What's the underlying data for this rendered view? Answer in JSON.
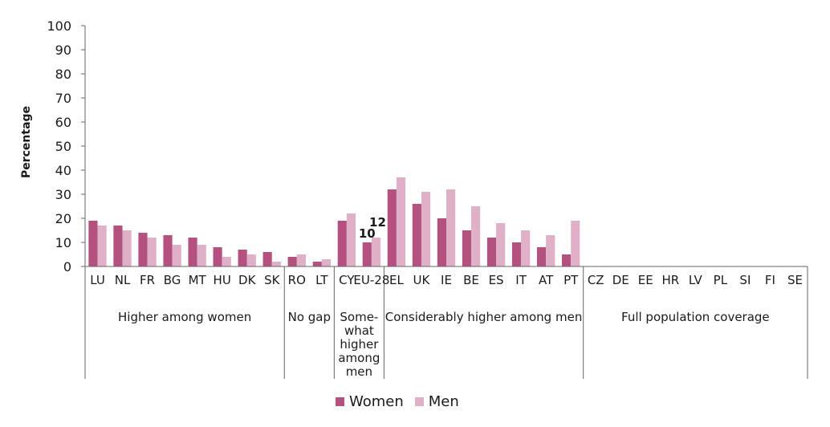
{
  "chart_data": {
    "type": "bar",
    "ylabel": "Percentage",
    "ylim": [
      0,
      100
    ],
    "yticks": [
      "0",
      "10",
      "20",
      "30",
      "40",
      "50",
      "60",
      "70",
      "80",
      "90",
      "100"
    ],
    "categories": [
      "LU",
      "NL",
      "FR",
      "BG",
      "MT",
      "HU",
      "DK",
      "SK",
      "RO",
      "LT",
      "CY",
      "EU-28",
      "EL",
      "UK",
      "IE",
      "BE",
      "ES",
      "IT",
      "AT",
      "PT",
      "CZ",
      "DE",
      "EE",
      "HR",
      "LV",
      "PL",
      "SI",
      "FI",
      "SE"
    ],
    "series": [
      {
        "name": "Women",
        "color": "#b5517f",
        "values": [
          19,
          17,
          14,
          13,
          12,
          8,
          7,
          6,
          4,
          2,
          19,
          10,
          32,
          26,
          20,
          15,
          12,
          10,
          8,
          5,
          null,
          null,
          null,
          null,
          null,
          null,
          null,
          null,
          null
        ]
      },
      {
        "name": "Men",
        "color": "#dfb0c8",
        "values": [
          17,
          15,
          12,
          9,
          9,
          4,
          5,
          2,
          5,
          3,
          22,
          12,
          37,
          31,
          32,
          25,
          18,
          15,
          13,
          19,
          null,
          null,
          null,
          null,
          null,
          null,
          null,
          null,
          null
        ]
      }
    ],
    "data_labels": [
      {
        "category": "EU-28",
        "series": "Women",
        "text": "10"
      },
      {
        "category": "EU-28",
        "series": "Men",
        "text": "12"
      }
    ],
    "groups": [
      {
        "lines": [
          "Higher among women"
        ],
        "start": 0,
        "end": 7
      },
      {
        "lines": [
          "No gap"
        ],
        "start": 8,
        "end": 9
      },
      {
        "lines": [
          "Some-",
          "what",
          "higher",
          "among",
          "men"
        ],
        "start": 10,
        "end": 11
      },
      {
        "lines": [
          "Considerably higher among men"
        ],
        "start": 12,
        "end": 19
      },
      {
        "lines": [
          "Full population coverage"
        ],
        "start": 20,
        "end": 28
      }
    ],
    "legend_position": "bottom",
    "grid": false
  }
}
